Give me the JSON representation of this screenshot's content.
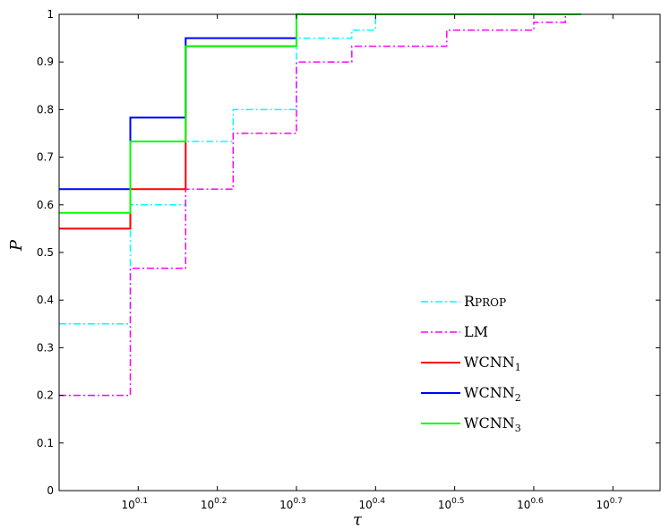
{
  "chart_data": {
    "type": "line",
    "title": "",
    "xlabel": "τ",
    "ylabel": "P",
    "xscale": "log10",
    "xlim": [
      1.0,
      5.75
    ],
    "ylim": [
      0,
      1
    ],
    "xticks": [
      {
        "value": 1.2589,
        "base": "10",
        "exp": "0.1"
      },
      {
        "value": 1.5849,
        "base": "10",
        "exp": "0.2"
      },
      {
        "value": 1.9953,
        "base": "10",
        "exp": "0.3"
      },
      {
        "value": 2.5119,
        "base": "10",
        "exp": "0.4"
      },
      {
        "value": 3.1623,
        "base": "10",
        "exp": "0.5"
      },
      {
        "value": 3.9811,
        "base": "10",
        "exp": "0.6"
      },
      {
        "value": 5.0119,
        "base": "10",
        "exp": "0.7"
      }
    ],
    "yticks": [
      "0",
      "0.1",
      "0.2",
      "0.3",
      "0.4",
      "0.5",
      "0.6",
      "0.7",
      "0.8",
      "0.9",
      "1"
    ],
    "grid": false,
    "legend_position": "bottom-right",
    "series": [
      {
        "name": "Rprop",
        "name_parts": {
          "first": "R",
          "rest": "PROP"
        },
        "color": "#00ffff",
        "style": "dashdot",
        "x": [
          1.0,
          1.2303,
          1.4454,
          1.6596,
          1.9953,
          2.3442,
          2.5119,
          4.5709
        ],
        "y": [
          0.35,
          0.6,
          0.733,
          0.8,
          0.95,
          0.967,
          1.0,
          1.0
        ]
      },
      {
        "name": "LM",
        "color": "#ff00ff",
        "style": "dashdot",
        "x": [
          1.0,
          1.2303,
          1.4454,
          1.6596,
          1.9953,
          2.3442,
          3.0903,
          3.9811,
          4.3652
        ],
        "y": [
          0.2,
          0.467,
          0.633,
          0.75,
          0.9,
          0.933,
          0.967,
          0.983,
          1.0
        ]
      },
      {
        "name": "WCNN1",
        "name_parts": {
          "main": "WCNN",
          "sub": "1"
        },
        "color": "#ff0000",
        "style": "solid",
        "x": [
          1.0,
          1.2303,
          1.4454,
          1.9953,
          4.5709
        ],
        "y": [
          0.55,
          0.633,
          0.933,
          1.0,
          1.0
        ]
      },
      {
        "name": "WCNN2",
        "name_parts": {
          "main": "WCNN",
          "sub": "2"
        },
        "color": "#0000ff",
        "style": "solid",
        "x": [
          1.0,
          1.2303,
          1.4454,
          1.9953,
          4.5709
        ],
        "y": [
          0.633,
          0.783,
          0.95,
          1.0,
          1.0
        ]
      },
      {
        "name": "WCNN3",
        "name_parts": {
          "main": "WCNN",
          "sub": "3"
        },
        "color": "#00ff00",
        "style": "solid",
        "x": [
          1.0,
          1.2303,
          1.4454,
          1.9953,
          4.5709
        ],
        "y": [
          0.583,
          0.733,
          0.933,
          1.0,
          1.0
        ]
      }
    ]
  }
}
